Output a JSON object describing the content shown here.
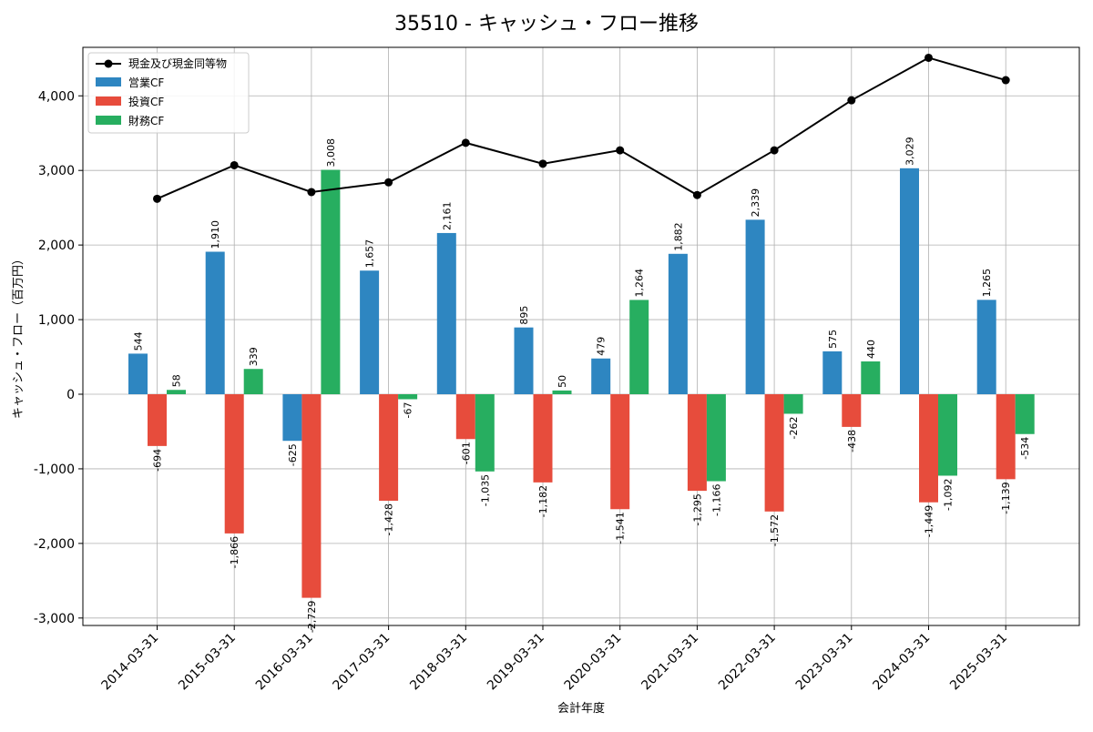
{
  "chart_data": {
    "type": "bar",
    "title": "35510 - キャッシュ・フロー推移",
    "xlabel": "会計年度",
    "ylabel": "キャッシュ・フロー（百万円）",
    "ylim": [
      -3100,
      4650
    ],
    "yticks": [
      -3000,
      -2000,
      -1000,
      0,
      1000,
      2000,
      3000,
      4000
    ],
    "ytick_labels": [
      "-3,000",
      "-2,000",
      "-1,000",
      "0",
      "1,000",
      "2,000",
      "3,000",
      "4,000"
    ],
    "grid": true,
    "legend_position": "top-left",
    "categories": [
      "2014-03-31",
      "2015-03-31",
      "2016-03-31",
      "2017-03-31",
      "2018-03-31",
      "2019-03-31",
      "2020-03-31",
      "2021-03-31",
      "2022-03-31",
      "2023-03-31",
      "2024-03-31",
      "2025-03-31"
    ],
    "series": [
      {
        "name": "営業CF",
        "kind": "bar",
        "color": "#2e86c1",
        "values": [
          544,
          1910,
          -625,
          1657,
          2161,
          895,
          479,
          1882,
          2339,
          575,
          3029,
          1265
        ],
        "labels": [
          "544",
          "1,910",
          "-625",
          "1,657",
          "2,161",
          "895",
          "479",
          "1,882",
          "2,339",
          "575",
          "3,029",
          "1,265"
        ]
      },
      {
        "name": "投資CF",
        "kind": "bar",
        "color": "#e74c3c",
        "values": [
          -694,
          -1866,
          -2729,
          -1428,
          -601,
          -1182,
          -1541,
          -1295,
          -1572,
          -438,
          -1449,
          -1139
        ],
        "labels": [
          "-694",
          "-1,866",
          "-2,729",
          "-1,428",
          "-601",
          "-1,182",
          "-1,541",
          "-1,295",
          "-1,572",
          "-438",
          "-1,449",
          "-1,139"
        ]
      },
      {
        "name": "財務CF",
        "kind": "bar",
        "color": "#27ae60",
        "values": [
          58,
          339,
          3008,
          -67,
          -1035,
          50,
          1264,
          -1166,
          -262,
          440,
          -1092,
          -534
        ],
        "labels": [
          "58",
          "339",
          "3,008",
          "-67",
          "-1,035",
          "50",
          "1,264",
          "-1,166",
          "-262",
          "440",
          "-1,092",
          "-534"
        ]
      },
      {
        "name": "現金及び現金同等物",
        "kind": "line",
        "color": "#000000",
        "values": [
          2620,
          3070,
          2710,
          2840,
          3370,
          3090,
          3270,
          2670,
          3270,
          3940,
          4510,
          4210
        ]
      }
    ]
  }
}
